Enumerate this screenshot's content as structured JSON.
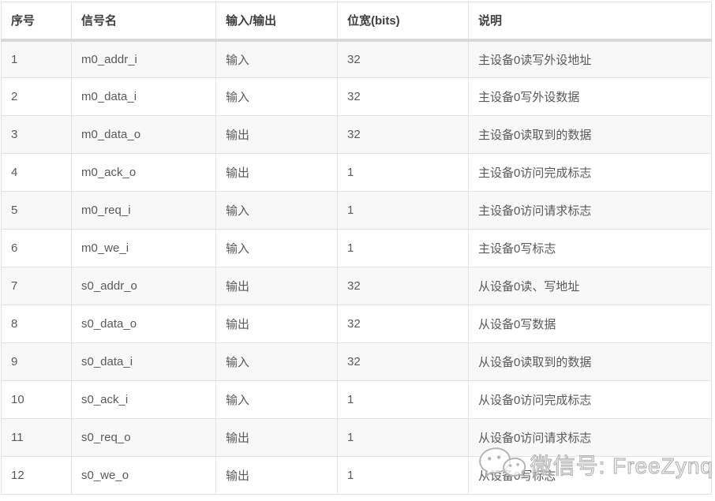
{
  "table": {
    "headers": [
      "序号",
      "信号名",
      "输入/输出",
      "位宽(bits)",
      "说明"
    ],
    "rows": [
      {
        "no": "1",
        "signal": "m0_addr_i",
        "dir": "输入",
        "width": "32",
        "desc": "主设备0读写外设地址"
      },
      {
        "no": "2",
        "signal": "m0_data_i",
        "dir": "输入",
        "width": "32",
        "desc": "主设备0写外设数据"
      },
      {
        "no": "3",
        "signal": "m0_data_o",
        "dir": "输出",
        "width": "32",
        "desc": "主设备0读取到的数据"
      },
      {
        "no": "4",
        "signal": "m0_ack_o",
        "dir": "输出",
        "width": "1",
        "desc": "主设备0访问完成标志"
      },
      {
        "no": "5",
        "signal": "m0_req_i",
        "dir": "输入",
        "width": "1",
        "desc": "主设备0访问请求标志"
      },
      {
        "no": "6",
        "signal": "m0_we_i",
        "dir": "输入",
        "width": "1",
        "desc": "主设备0写标志"
      },
      {
        "no": "7",
        "signal": "s0_addr_o",
        "dir": "输出",
        "width": "32",
        "desc": "从设备0读、写地址"
      },
      {
        "no": "8",
        "signal": "s0_data_o",
        "dir": "输出",
        "width": "32",
        "desc": "从设备0写数据"
      },
      {
        "no": "9",
        "signal": "s0_data_i",
        "dir": "输入",
        "width": "32",
        "desc": "从设备0读取到的数据"
      },
      {
        "no": "10",
        "signal": "s0_ack_i",
        "dir": "输入",
        "width": "1",
        "desc": "从设备0访问完成标志"
      },
      {
        "no": "11",
        "signal": "s0_req_o",
        "dir": "输出",
        "width": "1",
        "desc": "从设备0访问请求标志"
      },
      {
        "no": "12",
        "signal": "s0_we_o",
        "dir": "输出",
        "width": "1",
        "desc": "从设备0写标志"
      }
    ]
  },
  "watermark": {
    "text": "微信号: FreeZynq",
    "icon": "wechat-icon"
  },
  "colors": {
    "cell_border": "#e2e2e2",
    "header_separator": "#d8d8d8",
    "alt_row_bg": "#f8f8f8",
    "header_text": "#3f3f3f",
    "body_text": "#595959",
    "watermark": "#b5b5b5"
  }
}
